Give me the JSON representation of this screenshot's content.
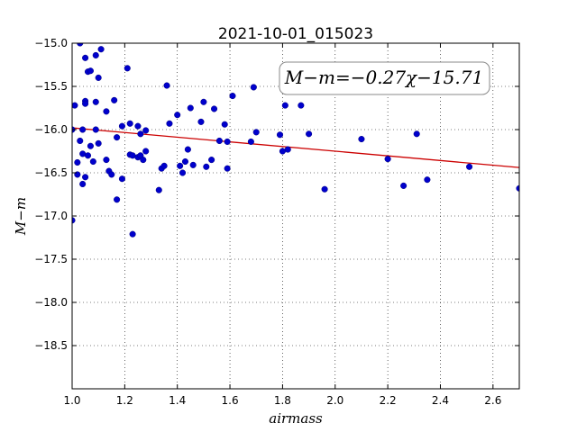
{
  "chart_data": {
    "type": "scatter",
    "title": "2021-10-01_015023",
    "xlabel": "airmass",
    "ylabel": "M−m",
    "xlim": [
      1.0,
      2.7
    ],
    "ylim": [
      -15.0,
      -19.0
    ],
    "y_inverted": true,
    "x_ticks": [
      1.0,
      1.2,
      1.4,
      1.6,
      1.8,
      2.0,
      2.2,
      2.4,
      2.6
    ],
    "x_tick_labels": [
      "1.0",
      "1.2",
      "1.4",
      "1.6",
      "1.8",
      "2.0",
      "2.2",
      "2.4",
      "2.6"
    ],
    "y_ticks": [
      -15.0,
      -15.5,
      -16.0,
      -16.5,
      -17.0,
      -17.5,
      -18.0,
      -18.5
    ],
    "y_tick_labels": [
      "−15.0",
      "−15.5",
      "−16.0",
      "−16.5",
      "−17.0",
      "−17.5",
      "−18.0",
      "−18.5"
    ],
    "grid": true,
    "annotation": "M−m=−0.27χ−15.71",
    "fit": {
      "slope": -0.27,
      "intercept": -15.71,
      "color": "#cc0000"
    },
    "marker_color": "#0000cc",
    "points": [
      [
        1.0,
        -16.0
      ],
      [
        1.0,
        -17.05
      ],
      [
        1.01,
        -15.72
      ],
      [
        1.02,
        -16.38
      ],
      [
        1.02,
        -16.52
      ],
      [
        1.03,
        -16.13
      ],
      [
        1.03,
        -15.0
      ],
      [
        1.04,
        -16.0
      ],
      [
        1.04,
        -16.28
      ],
      [
        1.04,
        -16.63
      ],
      [
        1.05,
        -15.17
      ],
      [
        1.05,
        -15.67
      ],
      [
        1.05,
        -15.7
      ],
      [
        1.05,
        -16.55
      ],
      [
        1.06,
        -16.3
      ],
      [
        1.06,
        -15.33
      ],
      [
        1.07,
        -15.32
      ],
      [
        1.07,
        -16.19
      ],
      [
        1.08,
        -16.37
      ],
      [
        1.09,
        -15.14
      ],
      [
        1.09,
        -15.68
      ],
      [
        1.09,
        -16.0
      ],
      [
        1.1,
        -15.4
      ],
      [
        1.1,
        -16.16
      ],
      [
        1.11,
        -15.07
      ],
      [
        1.13,
        -16.35
      ],
      [
        1.13,
        -15.79
      ],
      [
        1.14,
        -16.48
      ],
      [
        1.15,
        -16.52
      ],
      [
        1.16,
        -15.66
      ],
      [
        1.17,
        -16.09
      ],
      [
        1.17,
        -16.81
      ],
      [
        1.19,
        -15.96
      ],
      [
        1.19,
        -16.57
      ],
      [
        1.21,
        -15.29
      ],
      [
        1.22,
        -15.93
      ],
      [
        1.22,
        -16.29
      ],
      [
        1.23,
        -16.3
      ],
      [
        1.23,
        -17.21
      ],
      [
        1.25,
        -15.96
      ],
      [
        1.25,
        -16.32
      ],
      [
        1.26,
        -16.05
      ],
      [
        1.26,
        -16.3
      ],
      [
        1.27,
        -16.35
      ],
      [
        1.28,
        -16.01
      ],
      [
        1.28,
        -16.25
      ],
      [
        1.33,
        -16.7
      ],
      [
        1.34,
        -16.45
      ],
      [
        1.35,
        -16.42
      ],
      [
        1.36,
        -15.49
      ],
      [
        1.37,
        -15.93
      ],
      [
        1.4,
        -15.83
      ],
      [
        1.41,
        -16.42
      ],
      [
        1.42,
        -16.5
      ],
      [
        1.43,
        -16.37
      ],
      [
        1.44,
        -16.23
      ],
      [
        1.45,
        -15.75
      ],
      [
        1.46,
        -16.41
      ],
      [
        1.49,
        -15.91
      ],
      [
        1.5,
        -15.68
      ],
      [
        1.51,
        -16.43
      ],
      [
        1.53,
        -16.35
      ],
      [
        1.54,
        -15.76
      ],
      [
        1.56,
        -16.13
      ],
      [
        1.58,
        -15.94
      ],
      [
        1.59,
        -16.45
      ],
      [
        1.59,
        -16.14
      ],
      [
        1.61,
        -15.61
      ],
      [
        1.68,
        -16.14
      ],
      [
        1.69,
        -15.51
      ],
      [
        1.7,
        -16.03
      ],
      [
        1.79,
        -16.06
      ],
      [
        1.8,
        -16.25
      ],
      [
        1.81,
        -15.72
      ],
      [
        1.82,
        -16.23
      ],
      [
        1.87,
        -15.72
      ],
      [
        1.9,
        -16.05
      ],
      [
        1.96,
        -16.69
      ],
      [
        2.1,
        -16.11
      ],
      [
        2.2,
        -16.34
      ],
      [
        2.26,
        -16.65
      ],
      [
        2.31,
        -16.05
      ],
      [
        2.35,
        -16.58
      ],
      [
        2.51,
        -16.43
      ],
      [
        2.7,
        -16.68
      ]
    ]
  }
}
